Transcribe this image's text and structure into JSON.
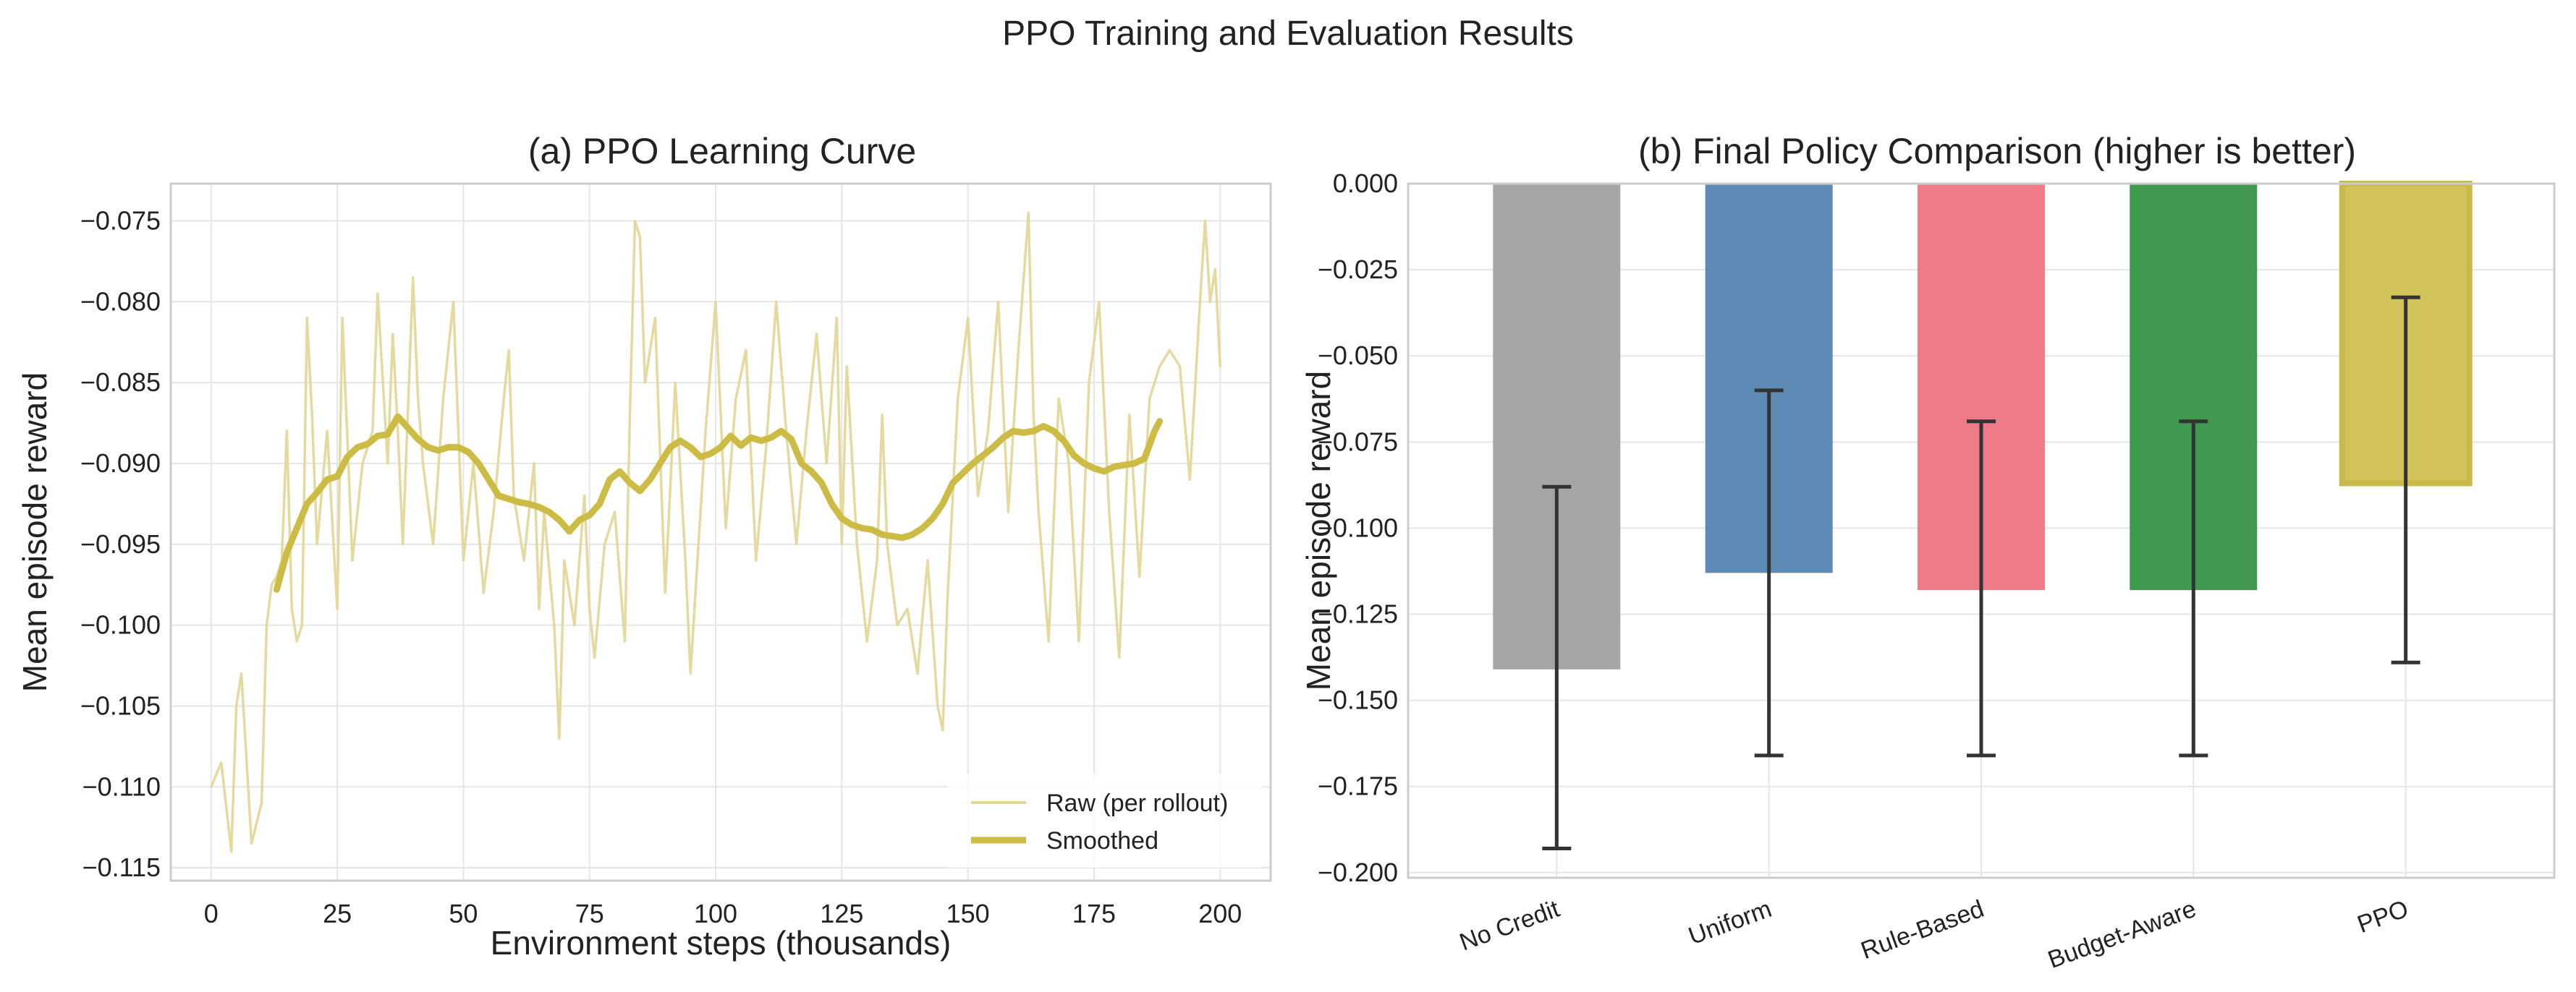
{
  "figure": {
    "suptitle": "PPO Training and Evaluation Results"
  },
  "chart_data": [
    {
      "type": "line",
      "title": "(a) PPO Learning Curve",
      "xlabel": "Environment steps (thousands)",
      "ylabel": "Mean episode reward",
      "xlim": [
        -8,
        210
      ],
      "ylim": [
        -0.1158,
        -0.0727
      ],
      "xticks": [
        0,
        25,
        50,
        75,
        100,
        125,
        150,
        175,
        200
      ],
      "xtick_labels": [
        "0",
        "25",
        "50",
        "75",
        "100",
        "125",
        "150",
        "175",
        "200"
      ],
      "yticks": [
        -0.115,
        -0.11,
        -0.105,
        -0.1,
        -0.095,
        -0.09,
        -0.085,
        -0.08,
        -0.075
      ],
      "ytick_labels": [
        "−0.115",
        "−0.110",
        "−0.105",
        "−0.100",
        "−0.095",
        "−0.090",
        "−0.085",
        "−0.080",
        "−0.075"
      ],
      "grid": true,
      "legend": {
        "position": "lower-right"
      },
      "series": [
        {
          "name": "Raw (per rollout)",
          "color": "#e3d79a",
          "x": [
            0,
            2,
            4,
            5,
            6,
            8,
            10,
            11,
            12,
            13,
            14,
            15,
            16,
            17,
            18,
            19,
            20,
            21,
            23,
            25,
            26,
            28,
            30,
            32,
            33,
            35,
            36,
            37,
            38,
            40,
            41,
            42,
            44,
            46,
            48,
            50,
            52,
            54,
            56,
            58,
            59,
            60,
            62,
            64,
            65,
            66,
            68,
            69,
            70,
            72,
            74,
            75,
            76,
            78,
            80,
            82,
            83,
            84,
            85,
            86,
            88,
            90,
            92,
            94,
            95,
            96,
            98,
            100,
            102,
            104,
            106,
            108,
            110,
            112,
            114,
            116,
            118,
            120,
            122,
            124,
            125,
            126,
            128,
            130,
            132,
            133,
            134,
            136,
            138,
            140,
            142,
            144,
            145,
            146,
            148,
            150,
            152,
            154,
            156,
            158,
            160,
            162,
            163,
            164,
            166,
            168,
            170,
            172,
            174,
            176,
            178,
            180,
            182,
            184,
            186,
            188,
            190,
            192,
            194,
            196,
            197,
            198,
            199,
            200
          ],
          "values": [
            -0.11,
            -0.1085,
            -0.114,
            -0.105,
            -0.103,
            -0.1135,
            -0.111,
            -0.1,
            -0.0975,
            -0.097,
            -0.096,
            -0.088,
            -0.099,
            -0.101,
            -0.1,
            -0.081,
            -0.087,
            -0.095,
            -0.088,
            -0.099,
            -0.081,
            -0.096,
            -0.09,
            -0.088,
            -0.0795,
            -0.09,
            -0.082,
            -0.088,
            -0.095,
            -0.0785,
            -0.086,
            -0.09,
            -0.095,
            -0.086,
            -0.08,
            -0.096,
            -0.09,
            -0.098,
            -0.093,
            -0.086,
            -0.083,
            -0.092,
            -0.096,
            -0.09,
            -0.099,
            -0.093,
            -0.1,
            -0.107,
            -0.096,
            -0.1,
            -0.092,
            -0.099,
            -0.102,
            -0.095,
            -0.093,
            -0.101,
            -0.087,
            -0.075,
            -0.076,
            -0.085,
            -0.081,
            -0.098,
            -0.085,
            -0.096,
            -0.103,
            -0.098,
            -0.088,
            -0.08,
            -0.094,
            -0.086,
            -0.083,
            -0.096,
            -0.089,
            -0.08,
            -0.088,
            -0.095,
            -0.088,
            -0.082,
            -0.09,
            -0.081,
            -0.095,
            -0.084,
            -0.095,
            -0.101,
            -0.096,
            -0.087,
            -0.095,
            -0.1,
            -0.099,
            -0.103,
            -0.096,
            -0.105,
            -0.1065,
            -0.098,
            -0.086,
            -0.081,
            -0.092,
            -0.088,
            -0.08,
            -0.093,
            -0.083,
            -0.0745,
            -0.087,
            -0.093,
            -0.101,
            -0.086,
            -0.09,
            -0.101,
            -0.085,
            -0.08,
            -0.093,
            -0.102,
            -0.087,
            -0.097,
            -0.086,
            -0.084,
            -0.083,
            -0.084,
            -0.091,
            -0.08,
            -0.075,
            -0.08,
            -0.078,
            -0.084
          ]
        },
        {
          "name": "Smoothed",
          "color": "#ccbb44",
          "x": [
            13,
            15,
            17,
            19,
            21,
            23,
            25,
            27,
            29,
            31,
            33,
            35,
            37,
            39,
            41,
            43,
            45,
            47,
            49,
            51,
            53,
            55,
            57,
            59,
            61,
            63,
            65,
            67,
            69,
            71,
            73,
            75,
            77,
            79,
            81,
            83,
            85,
            87,
            89,
            91,
            93,
            95,
            97,
            99,
            101,
            103,
            105,
            107,
            109,
            111,
            113,
            115,
            117,
            119,
            121,
            123,
            125,
            127,
            129,
            131,
            133,
            135,
            137,
            139,
            141,
            143,
            145,
            147,
            149,
            151,
            153,
            155,
            157,
            159,
            161,
            163,
            165,
            167,
            169,
            171,
            173,
            175,
            177,
            179,
            181,
            183,
            185,
            187,
            188
          ],
          "values": [
            -0.0978,
            -0.0955,
            -0.094,
            -0.0925,
            -0.0918,
            -0.091,
            -0.0908,
            -0.0896,
            -0.089,
            -0.0888,
            -0.0883,
            -0.0882,
            -0.0871,
            -0.0878,
            -0.0885,
            -0.089,
            -0.0892,
            -0.089,
            -0.089,
            -0.0893,
            -0.09,
            -0.091,
            -0.092,
            -0.0922,
            -0.0924,
            -0.0925,
            -0.0927,
            -0.093,
            -0.0935,
            -0.0942,
            -0.0935,
            -0.0932,
            -0.0925,
            -0.091,
            -0.0905,
            -0.0912,
            -0.0917,
            -0.091,
            -0.09,
            -0.089,
            -0.0886,
            -0.089,
            -0.0896,
            -0.0894,
            -0.089,
            -0.0883,
            -0.0889,
            -0.0884,
            -0.0886,
            -0.0884,
            -0.088,
            -0.0885,
            -0.09,
            -0.0905,
            -0.0912,
            -0.0925,
            -0.0934,
            -0.0938,
            -0.094,
            -0.0941,
            -0.0944,
            -0.0945,
            -0.0946,
            -0.0944,
            -0.094,
            -0.0934,
            -0.0925,
            -0.0912,
            -0.0906,
            -0.09,
            -0.0895,
            -0.089,
            -0.0884,
            -0.088,
            -0.0881,
            -0.088,
            -0.0877,
            -0.088,
            -0.0886,
            -0.0895,
            -0.09,
            -0.0903,
            -0.0905,
            -0.0902,
            -0.0901,
            -0.09,
            -0.0897,
            -0.088,
            -0.0874
          ]
        }
      ]
    },
    {
      "type": "bar",
      "title": "(b) Final Policy Comparison (higher is better)",
      "ylabel": "Mean episode reward",
      "ylim": [
        -0.2015,
        0.0
      ],
      "yticks": [
        -0.2,
        -0.175,
        -0.15,
        -0.125,
        -0.1,
        -0.075,
        -0.05,
        -0.025,
        0.0
      ],
      "ytick_labels": [
        "−0.200",
        "−0.175",
        "−0.150",
        "−0.125",
        "−0.100",
        "−0.075",
        "−0.050",
        "−0.025",
        "0.000"
      ],
      "grid": true,
      "categories": [
        "No Credit",
        "Uniform",
        "Rule-Based",
        "Budget-Aware",
        "PPO"
      ],
      "values": [
        -0.141,
        -0.113,
        -0.118,
        -0.118,
        -0.087
      ],
      "error_low": [
        -0.193,
        -0.166,
        -0.166,
        -0.166,
        -0.139
      ],
      "error_high": [
        -0.088,
        -0.06,
        -0.069,
        -0.069,
        -0.033
      ],
      "colors": [
        "#a6a6a6",
        "#5e8ab6",
        "#ef7b89",
        "#3f9a50",
        "#d1c25a"
      ],
      "highlight_edge": "#c9b84a",
      "highlighted": "PPO"
    }
  ]
}
